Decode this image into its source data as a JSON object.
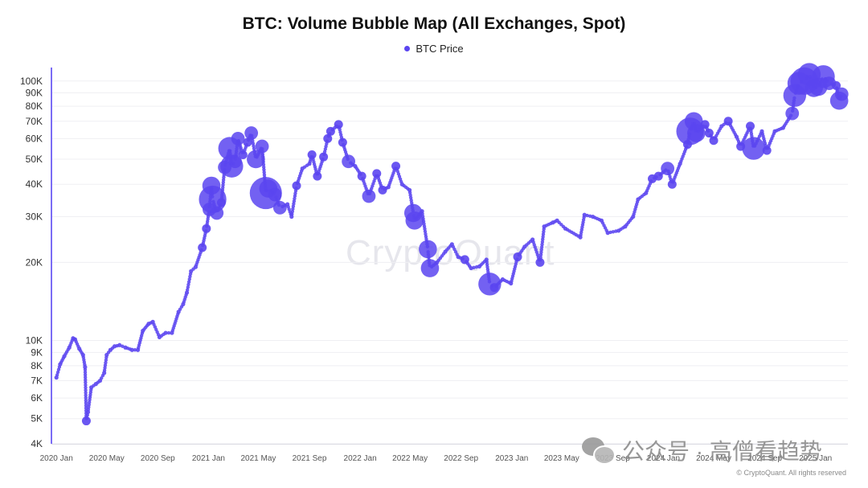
{
  "chart_data": {
    "type": "scatter",
    "title": "BTC: Volume Bubble Map (All Exchanges, Spot)",
    "legend": {
      "position": "top-center",
      "entries": [
        {
          "name": "BTC Price",
          "color": "#5b45f0"
        }
      ]
    },
    "series": [
      {
        "name": "BTC Price",
        "color": "#5b45f0",
        "points": [
          {
            "x": "2020-01-01",
            "y": 7200,
            "v": 1
          },
          {
            "x": "2020-01-10",
            "y": 8100,
            "v": 1
          },
          {
            "x": "2020-01-20",
            "y": 8700,
            "v": 1
          },
          {
            "x": "2020-02-01",
            "y": 9400,
            "v": 1
          },
          {
            "x": "2020-02-10",
            "y": 10200,
            "v": 1
          },
          {
            "x": "2020-02-15",
            "y": 10100,
            "v": 1
          },
          {
            "x": "2020-02-25",
            "y": 9300,
            "v": 1
          },
          {
            "x": "2020-03-05",
            "y": 8800,
            "v": 1
          },
          {
            "x": "2020-03-10",
            "y": 7900,
            "v": 1
          },
          {
            "x": "2020-03-13",
            "y": 4900,
            "v": 2
          },
          {
            "x": "2020-03-17",
            "y": 5300,
            "v": 1
          },
          {
            "x": "2020-03-25",
            "y": 6600,
            "v": 1
          },
          {
            "x": "2020-04-05",
            "y": 6800,
            "v": 1
          },
          {
            "x": "2020-04-15",
            "y": 7000,
            "v": 1
          },
          {
            "x": "2020-04-25",
            "y": 7500,
            "v": 1
          },
          {
            "x": "2020-05-01",
            "y": 8800,
            "v": 1
          },
          {
            "x": "2020-05-10",
            "y": 9200,
            "v": 1
          },
          {
            "x": "2020-05-20",
            "y": 9500,
            "v": 1
          },
          {
            "x": "2020-06-01",
            "y": 9600,
            "v": 1
          },
          {
            "x": "2020-06-15",
            "y": 9400,
            "v": 1
          },
          {
            "x": "2020-07-01",
            "y": 9200,
            "v": 1
          },
          {
            "x": "2020-07-15",
            "y": 9200,
            "v": 1
          },
          {
            "x": "2020-07-27",
            "y": 10900,
            "v": 1
          },
          {
            "x": "2020-08-10",
            "y": 11600,
            "v": 1
          },
          {
            "x": "2020-08-20",
            "y": 11800,
            "v": 1
          },
          {
            "x": "2020-09-05",
            "y": 10300,
            "v": 1
          },
          {
            "x": "2020-09-20",
            "y": 10700,
            "v": 1
          },
          {
            "x": "2020-10-05",
            "y": 10700,
            "v": 1
          },
          {
            "x": "2020-10-21",
            "y": 12900,
            "v": 1
          },
          {
            "x": "2020-11-01",
            "y": 13800,
            "v": 1
          },
          {
            "x": "2020-11-10",
            "y": 15300,
            "v": 1
          },
          {
            "x": "2020-11-20",
            "y": 18500,
            "v": 1
          },
          {
            "x": "2020-12-01",
            "y": 19200,
            "v": 1
          },
          {
            "x": "2020-12-17",
            "y": 22800,
            "v": 2
          },
          {
            "x": "2020-12-27",
            "y": 27000,
            "v": 2
          },
          {
            "x": "2021-01-03",
            "y": 32000,
            "v": 3
          },
          {
            "x": "2021-01-08",
            "y": 39500,
            "v": 4
          },
          {
            "x": "2021-01-11",
            "y": 35000,
            "v": 6
          },
          {
            "x": "2021-01-21",
            "y": 31000,
            "v": 3
          },
          {
            "x": "2021-02-01",
            "y": 34000,
            "v": 2
          },
          {
            "x": "2021-02-09",
            "y": 46500,
            "v": 3
          },
          {
            "x": "2021-02-21",
            "y": 55000,
            "v": 5
          },
          {
            "x": "2021-02-26",
            "y": 47000,
            "v": 5
          },
          {
            "x": "2021-03-06",
            "y": 49000,
            "v": 3
          },
          {
            "x": "2021-03-13",
            "y": 60000,
            "v": 3
          },
          {
            "x": "2021-03-25",
            "y": 52000,
            "v": 2
          },
          {
            "x": "2021-04-05",
            "y": 58000,
            "v": 2
          },
          {
            "x": "2021-04-14",
            "y": 63000,
            "v": 3
          },
          {
            "x": "2021-04-25",
            "y": 50000,
            "v": 4
          },
          {
            "x": "2021-05-10",
            "y": 56000,
            "v": 3
          },
          {
            "x": "2021-05-19",
            "y": 37000,
            "v": 7
          },
          {
            "x": "2021-05-25",
            "y": 38500,
            "v": 4
          },
          {
            "x": "2021-06-10",
            "y": 36500,
            "v": 3
          },
          {
            "x": "2021-06-22",
            "y": 32500,
            "v": 3
          },
          {
            "x": "2021-07-10",
            "y": 33500,
            "v": 1
          },
          {
            "x": "2021-07-20",
            "y": 30000,
            "v": 1
          },
          {
            "x": "2021-08-01",
            "y": 39500,
            "v": 2
          },
          {
            "x": "2021-08-15",
            "y": 46000,
            "v": 1
          },
          {
            "x": "2021-09-01",
            "y": 48000,
            "v": 1
          },
          {
            "x": "2021-09-07",
            "y": 52000,
            "v": 2
          },
          {
            "x": "2021-09-20",
            "y": 43000,
            "v": 2
          },
          {
            "x": "2021-10-05",
            "y": 51000,
            "v": 2
          },
          {
            "x": "2021-10-15",
            "y": 60000,
            "v": 2
          },
          {
            "x": "2021-10-22",
            "y": 64000,
            "v": 2
          },
          {
            "x": "2021-11-10",
            "y": 68000,
            "v": 2
          },
          {
            "x": "2021-11-20",
            "y": 58000,
            "v": 2
          },
          {
            "x": "2021-12-04",
            "y": 49000,
            "v": 3
          },
          {
            "x": "2021-12-20",
            "y": 47000,
            "v": 1
          },
          {
            "x": "2022-01-05",
            "y": 43000,
            "v": 2
          },
          {
            "x": "2022-01-22",
            "y": 36000,
            "v": 3
          },
          {
            "x": "2022-02-10",
            "y": 44000,
            "v": 2
          },
          {
            "x": "2022-02-24",
            "y": 38000,
            "v": 2
          },
          {
            "x": "2022-03-10",
            "y": 39000,
            "v": 1
          },
          {
            "x": "2022-03-28",
            "y": 47000,
            "v": 2
          },
          {
            "x": "2022-04-12",
            "y": 40000,
            "v": 1
          },
          {
            "x": "2022-04-30",
            "y": 38000,
            "v": 1
          },
          {
            "x": "2022-05-09",
            "y": 31000,
            "v": 4
          },
          {
            "x": "2022-05-12",
            "y": 29000,
            "v": 4
          },
          {
            "x": "2022-05-30",
            "y": 31500,
            "v": 1
          },
          {
            "x": "2022-06-13",
            "y": 22500,
            "v": 4
          },
          {
            "x": "2022-06-18",
            "y": 19000,
            "v": 4
          },
          {
            "x": "2022-07-05",
            "y": 20000,
            "v": 1
          },
          {
            "x": "2022-07-25",
            "y": 22000,
            "v": 1
          },
          {
            "x": "2022-08-10",
            "y": 23500,
            "v": 1
          },
          {
            "x": "2022-08-25",
            "y": 21000,
            "v": 1
          },
          {
            "x": "2022-09-10",
            "y": 20500,
            "v": 2
          },
          {
            "x": "2022-09-25",
            "y": 19000,
            "v": 1
          },
          {
            "x": "2022-10-15",
            "y": 19300,
            "v": 1
          },
          {
            "x": "2022-11-01",
            "y": 20500,
            "v": 1
          },
          {
            "x": "2022-11-09",
            "y": 16500,
            "v": 5
          },
          {
            "x": "2022-11-20",
            "y": 16000,
            "v": 2
          },
          {
            "x": "2022-12-10",
            "y": 17200,
            "v": 1
          },
          {
            "x": "2022-12-30",
            "y": 16600,
            "v": 1
          },
          {
            "x": "2023-01-15",
            "y": 21000,
            "v": 2
          },
          {
            "x": "2023-02-01",
            "y": 23000,
            "v": 1
          },
          {
            "x": "2023-02-20",
            "y": 24500,
            "v": 1
          },
          {
            "x": "2023-03-10",
            "y": 20000,
            "v": 2
          },
          {
            "x": "2023-03-20",
            "y": 27500,
            "v": 1
          },
          {
            "x": "2023-04-10",
            "y": 28500,
            "v": 1
          },
          {
            "x": "2023-04-20",
            "y": 29000,
            "v": 1
          },
          {
            "x": "2023-05-10",
            "y": 27000,
            "v": 1
          },
          {
            "x": "2023-06-15",
            "y": 25000,
            "v": 1
          },
          {
            "x": "2023-06-25",
            "y": 30500,
            "v": 1
          },
          {
            "x": "2023-07-15",
            "y": 30000,
            "v": 1
          },
          {
            "x": "2023-08-05",
            "y": 29000,
            "v": 1
          },
          {
            "x": "2023-08-20",
            "y": 26000,
            "v": 1
          },
          {
            "x": "2023-09-15",
            "y": 26500,
            "v": 1
          },
          {
            "x": "2023-10-01",
            "y": 27500,
            "v": 1
          },
          {
            "x": "2023-10-20",
            "y": 30000,
            "v": 1
          },
          {
            "x": "2023-11-01",
            "y": 35000,
            "v": 1
          },
          {
            "x": "2023-11-20",
            "y": 37000,
            "v": 1
          },
          {
            "x": "2023-12-05",
            "y": 42000,
            "v": 2
          },
          {
            "x": "2023-12-20",
            "y": 43000,
            "v": 2
          },
          {
            "x": "2024-01-11",
            "y": 46000,
            "v": 3
          },
          {
            "x": "2024-01-22",
            "y": 40000,
            "v": 2
          },
          {
            "x": "2024-02-10",
            "y": 48000,
            "v": 1
          },
          {
            "x": "2024-02-28",
            "y": 57000,
            "v": 2
          },
          {
            "x": "2024-03-05",
            "y": 64000,
            "v": 6
          },
          {
            "x": "2024-03-14",
            "y": 70000,
            "v": 4
          },
          {
            "x": "2024-03-20",
            "y": 63000,
            "v": 4
          },
          {
            "x": "2024-04-10",
            "y": 68000,
            "v": 2
          },
          {
            "x": "2024-04-20",
            "y": 63000,
            "v": 2
          },
          {
            "x": "2024-05-01",
            "y": 59000,
            "v": 2
          },
          {
            "x": "2024-05-20",
            "y": 67000,
            "v": 1
          },
          {
            "x": "2024-06-05",
            "y": 70000,
            "v": 2
          },
          {
            "x": "2024-06-25",
            "y": 61000,
            "v": 1
          },
          {
            "x": "2024-07-05",
            "y": 56000,
            "v": 2
          },
          {
            "x": "2024-07-28",
            "y": 67000,
            "v": 2
          },
          {
            "x": "2024-08-05",
            "y": 55000,
            "v": 5
          },
          {
            "x": "2024-08-25",
            "y": 64000,
            "v": 1
          },
          {
            "x": "2024-09-06",
            "y": 54000,
            "v": 2
          },
          {
            "x": "2024-09-25",
            "y": 64000,
            "v": 1
          },
          {
            "x": "2024-10-15",
            "y": 66000,
            "v": 1
          },
          {
            "x": "2024-11-06",
            "y": 75000,
            "v": 3
          },
          {
            "x": "2024-11-12",
            "y": 88000,
            "v": 5
          },
          {
            "x": "2024-11-22",
            "y": 98000,
            "v": 5
          },
          {
            "x": "2024-12-05",
            "y": 100000,
            "v": 6
          },
          {
            "x": "2024-12-17",
            "y": 106000,
            "v": 5
          },
          {
            "x": "2024-12-28",
            "y": 94000,
            "v": 4
          },
          {
            "x": "2025-01-08",
            "y": 95000,
            "v": 4
          },
          {
            "x": "2025-01-20",
            "y": 104000,
            "v": 5
          },
          {
            "x": "2025-02-03",
            "y": 98000,
            "v": 3
          },
          {
            "x": "2025-02-20",
            "y": 96000,
            "v": 2
          },
          {
            "x": "2025-02-27",
            "y": 84000,
            "v": 4
          },
          {
            "x": "2025-03-05",
            "y": 89000,
            "v": 3
          }
        ]
      }
    ],
    "x_axis": {
      "type": "date",
      "range": [
        "2019-12-20",
        "2025-03-20"
      ],
      "ticks": [
        {
          "date": "2020-01-01",
          "label": "2020 Jan"
        },
        {
          "date": "2020-05-01",
          "label": "2020 May"
        },
        {
          "date": "2020-09-01",
          "label": "2020 Sep"
        },
        {
          "date": "2021-01-01",
          "label": "2021 Jan"
        },
        {
          "date": "2021-05-01",
          "label": "2021 May"
        },
        {
          "date": "2021-09-01",
          "label": "2021 Sep"
        },
        {
          "date": "2022-01-01",
          "label": "2022 Jan"
        },
        {
          "date": "2022-05-01",
          "label": "2022 May"
        },
        {
          "date": "2022-09-01",
          "label": "2022 Sep"
        },
        {
          "date": "2023-01-01",
          "label": "2023 Jan"
        },
        {
          "date": "2023-05-01",
          "label": "2023 May"
        },
        {
          "date": "2023-09-01",
          "label": "2023 Sep"
        },
        {
          "date": "2024-01-01",
          "label": "2024 Jan"
        },
        {
          "date": "2024-05-01",
          "label": "2024 May"
        },
        {
          "date": "2024-09-01",
          "label": "2024 Sep"
        },
        {
          "date": "2025-01-01",
          "label": "2025 Jan"
        }
      ]
    },
    "y_axis": {
      "scale": "log",
      "range": [
        4000,
        108000
      ],
      "ticks": [
        {
          "value": 4000,
          "label": "4K"
        },
        {
          "value": 5000,
          "label": "5K"
        },
        {
          "value": 6000,
          "label": "6K"
        },
        {
          "value": 7000,
          "label": "7K"
        },
        {
          "value": 8000,
          "label": "8K"
        },
        {
          "value": 9000,
          "label": "9K"
        },
        {
          "value": 10000,
          "label": "10K"
        },
        {
          "value": 20000,
          "label": "20K"
        },
        {
          "value": 30000,
          "label": "30K"
        },
        {
          "value": 40000,
          "label": "40K"
        },
        {
          "value": 50000,
          "label": "50K"
        },
        {
          "value": 60000,
          "label": "60K"
        },
        {
          "value": 70000,
          "label": "70K"
        },
        {
          "value": 80000,
          "label": "80K"
        },
        {
          "value": 90000,
          "label": "90K"
        },
        {
          "value": 100000,
          "label": "100K"
        }
      ]
    },
    "grid": true
  },
  "watermark": "CryptoQuant",
  "copyright": "© CryptoQuant. All rights reserved",
  "wechat_caption": "公众号 · 高僧看趋势",
  "colors": {
    "bubble": "#5b45f0",
    "axis_accent": "#7b6cf5",
    "grid": "#efeff3"
  }
}
